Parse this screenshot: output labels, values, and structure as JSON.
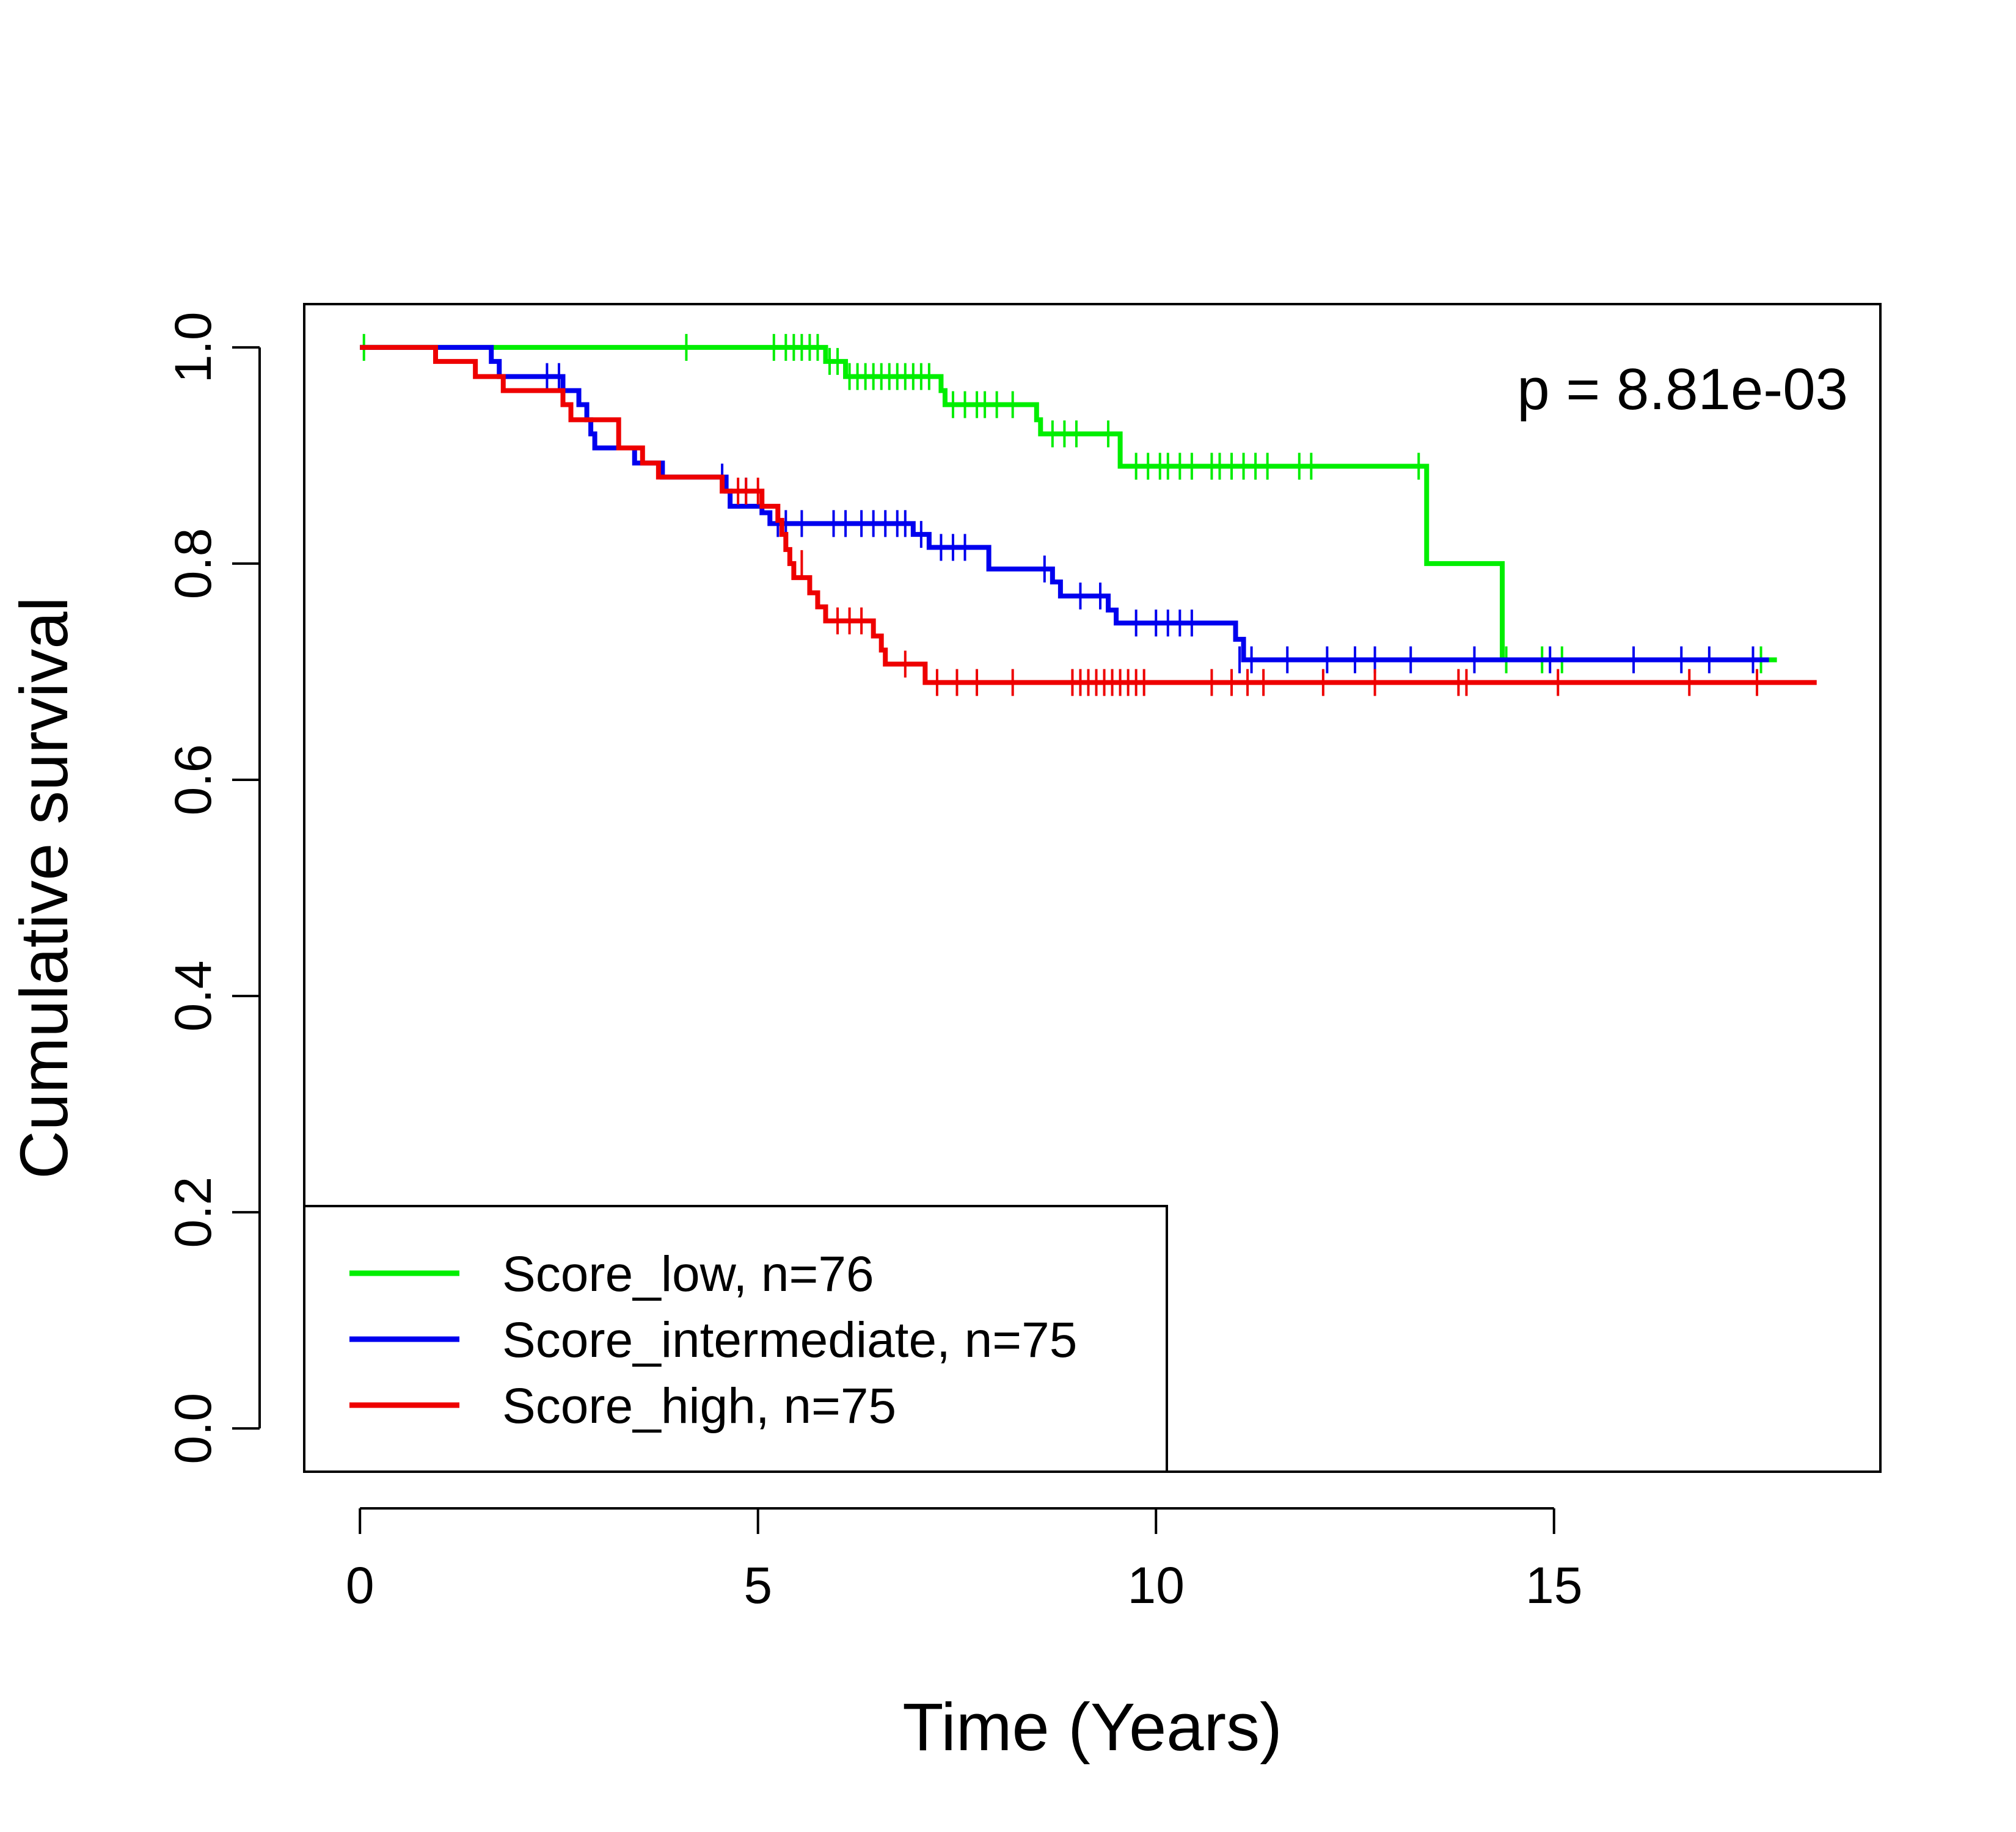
{
  "chart_data": {
    "type": "line",
    "subtype": "kaplan-meier",
    "title": "",
    "xlabel": "Time (Years)",
    "ylabel": "Cumulative survival",
    "xlim": [
      -0.7,
      19.1
    ],
    "ylim": [
      -0.04,
      1.04
    ],
    "xticks": [
      0,
      5,
      10,
      15
    ],
    "yticks": [
      0.0,
      0.2,
      0.4,
      0.6,
      0.8,
      1.0
    ],
    "xtick_labels": [
      "0",
      "5",
      "10",
      "15"
    ],
    "ytick_labels": [
      "0.0",
      "0.2",
      "0.4",
      "0.6",
      "0.8",
      "1.0"
    ],
    "annotation": "p = 8.81e-03",
    "grid": false,
    "legend_position": "bottom-left",
    "series": [
      {
        "name": "Score_low, n=76",
        "color": "#00ee00",
        "steps": [
          [
            0,
            1.0
          ],
          [
            5.85,
            0.987
          ],
          [
            6.1,
            0.973
          ],
          [
            7.3,
            0.96
          ],
          [
            7.35,
            0.947
          ],
          [
            8.5,
            0.933
          ],
          [
            8.55,
            0.92
          ],
          [
            9.55,
            0.89
          ],
          [
            13.4,
            0.8
          ],
          [
            14.35,
            0.711
          ],
          [
            17.8,
            0.711
          ]
        ],
        "censored": [
          [
            0.05,
            1.0
          ],
          [
            4.1,
            1.0
          ],
          [
            5.2,
            1.0
          ],
          [
            5.35,
            1.0
          ],
          [
            5.45,
            1.0
          ],
          [
            5.55,
            1.0
          ],
          [
            5.65,
            1.0
          ],
          [
            5.75,
            1.0
          ],
          [
            5.9,
            0.987
          ],
          [
            6.0,
            0.987
          ],
          [
            6.15,
            0.973
          ],
          [
            6.25,
            0.973
          ],
          [
            6.35,
            0.973
          ],
          [
            6.45,
            0.973
          ],
          [
            6.55,
            0.973
          ],
          [
            6.65,
            0.973
          ],
          [
            6.75,
            0.973
          ],
          [
            6.85,
            0.973
          ],
          [
            6.95,
            0.973
          ],
          [
            7.05,
            0.973
          ],
          [
            7.15,
            0.973
          ],
          [
            7.45,
            0.947
          ],
          [
            7.6,
            0.947
          ],
          [
            7.75,
            0.947
          ],
          [
            7.85,
            0.947
          ],
          [
            8.0,
            0.947
          ],
          [
            8.2,
            0.947
          ],
          [
            8.7,
            0.92
          ],
          [
            8.85,
            0.92
          ],
          [
            9.0,
            0.92
          ],
          [
            9.4,
            0.92
          ],
          [
            9.75,
            0.89
          ],
          [
            9.9,
            0.89
          ],
          [
            10.05,
            0.89
          ],
          [
            10.15,
            0.89
          ],
          [
            10.3,
            0.89
          ],
          [
            10.45,
            0.89
          ],
          [
            10.7,
            0.89
          ],
          [
            10.8,
            0.89
          ],
          [
            10.95,
            0.89
          ],
          [
            11.1,
            0.89
          ],
          [
            11.25,
            0.89
          ],
          [
            11.4,
            0.89
          ],
          [
            11.8,
            0.89
          ],
          [
            11.95,
            0.89
          ],
          [
            13.3,
            0.89
          ],
          [
            14.4,
            0.711
          ],
          [
            14.85,
            0.711
          ],
          [
            15.1,
            0.711
          ],
          [
            17.6,
            0.711
          ]
        ]
      },
      {
        "name": "Score_intermediate, n=75",
        "color": "#0000ee",
        "steps": [
          [
            0,
            1.0
          ],
          [
            1.65,
            0.987
          ],
          [
            1.75,
            0.973
          ],
          [
            2.55,
            0.96
          ],
          [
            2.75,
            0.947
          ],
          [
            2.85,
            0.933
          ],
          [
            2.9,
            0.92
          ],
          [
            2.95,
            0.907
          ],
          [
            3.45,
            0.893
          ],
          [
            3.8,
            0.88
          ],
          [
            4.6,
            0.867
          ],
          [
            4.65,
            0.853
          ],
          [
            5.05,
            0.847
          ],
          [
            5.15,
            0.837
          ],
          [
            6.95,
            0.827
          ],
          [
            7.15,
            0.815
          ],
          [
            7.9,
            0.795
          ],
          [
            8.7,
            0.783
          ],
          [
            8.8,
            0.77
          ],
          [
            9.4,
            0.757
          ],
          [
            9.5,
            0.745
          ],
          [
            11.0,
            0.73
          ],
          [
            11.1,
            0.711
          ],
          [
            17.7,
            0.711
          ]
        ],
        "censored": [
          [
            2.35,
            0.973
          ],
          [
            2.5,
            0.973
          ],
          [
            4.55,
            0.88
          ],
          [
            4.85,
            0.867
          ],
          [
            5.25,
            0.837
          ],
          [
            5.35,
            0.837
          ],
          [
            5.55,
            0.837
          ],
          [
            5.95,
            0.837
          ],
          [
            6.1,
            0.837
          ],
          [
            6.3,
            0.837
          ],
          [
            6.45,
            0.837
          ],
          [
            6.6,
            0.837
          ],
          [
            6.75,
            0.837
          ],
          [
            6.85,
            0.837
          ],
          [
            7.05,
            0.827
          ],
          [
            7.3,
            0.815
          ],
          [
            7.45,
            0.815
          ],
          [
            7.6,
            0.815
          ],
          [
            8.6,
            0.795
          ],
          [
            9.05,
            0.77
          ],
          [
            9.3,
            0.77
          ],
          [
            9.75,
            0.745
          ],
          [
            10.0,
            0.745
          ],
          [
            10.15,
            0.745
          ],
          [
            10.3,
            0.745
          ],
          [
            10.45,
            0.745
          ],
          [
            11.05,
            0.711
          ],
          [
            11.2,
            0.711
          ],
          [
            11.65,
            0.711
          ],
          [
            12.15,
            0.711
          ],
          [
            12.5,
            0.711
          ],
          [
            12.75,
            0.711
          ],
          [
            13.2,
            0.711
          ],
          [
            14.0,
            0.711
          ],
          [
            14.95,
            0.711
          ],
          [
            16.0,
            0.711
          ],
          [
            16.6,
            0.711
          ],
          [
            16.95,
            0.711
          ],
          [
            17.5,
            0.711
          ]
        ]
      },
      {
        "name": "Score_high, n=75",
        "color": "#ee0000",
        "steps": [
          [
            0,
            1.0
          ],
          [
            0.95,
            0.987
          ],
          [
            1.45,
            0.973
          ],
          [
            1.8,
            0.96
          ],
          [
            2.55,
            0.947
          ],
          [
            2.65,
            0.933
          ],
          [
            3.25,
            0.907
          ],
          [
            3.55,
            0.893
          ],
          [
            3.75,
            0.88
          ],
          [
            4.55,
            0.867
          ],
          [
            5.05,
            0.853
          ],
          [
            5.25,
            0.84
          ],
          [
            5.3,
            0.827
          ],
          [
            5.35,
            0.813
          ],
          [
            5.4,
            0.8
          ],
          [
            5.45,
            0.787
          ],
          [
            5.65,
            0.773
          ],
          [
            5.75,
            0.76
          ],
          [
            5.85,
            0.747
          ],
          [
            6.45,
            0.733
          ],
          [
            6.55,
            0.72
          ],
          [
            6.6,
            0.707
          ],
          [
            7.1,
            0.69
          ],
          [
            18.3,
            0.69
          ]
        ],
        "censored": [
          [
            4.75,
            0.867
          ],
          [
            4.85,
            0.867
          ],
          [
            5.0,
            0.867
          ],
          [
            5.55,
            0.8
          ],
          [
            6.0,
            0.747
          ],
          [
            6.15,
            0.747
          ],
          [
            6.3,
            0.747
          ],
          [
            6.85,
            0.707
          ],
          [
            7.25,
            0.69
          ],
          [
            7.5,
            0.69
          ],
          [
            7.75,
            0.69
          ],
          [
            8.2,
            0.69
          ],
          [
            8.95,
            0.69
          ],
          [
            9.05,
            0.69
          ],
          [
            9.15,
            0.69
          ],
          [
            9.25,
            0.69
          ],
          [
            9.35,
            0.69
          ],
          [
            9.45,
            0.69
          ],
          [
            9.55,
            0.69
          ],
          [
            9.65,
            0.69
          ],
          [
            9.75,
            0.69
          ],
          [
            9.85,
            0.69
          ],
          [
            10.7,
            0.69
          ],
          [
            10.95,
            0.69
          ],
          [
            11.15,
            0.69
          ],
          [
            11.35,
            0.69
          ],
          [
            12.1,
            0.69
          ],
          [
            12.75,
            0.69
          ],
          [
            13.8,
            0.69
          ],
          [
            13.9,
            0.69
          ],
          [
            15.05,
            0.69
          ],
          [
            16.7,
            0.69
          ],
          [
            17.55,
            0.69
          ]
        ]
      }
    ]
  }
}
